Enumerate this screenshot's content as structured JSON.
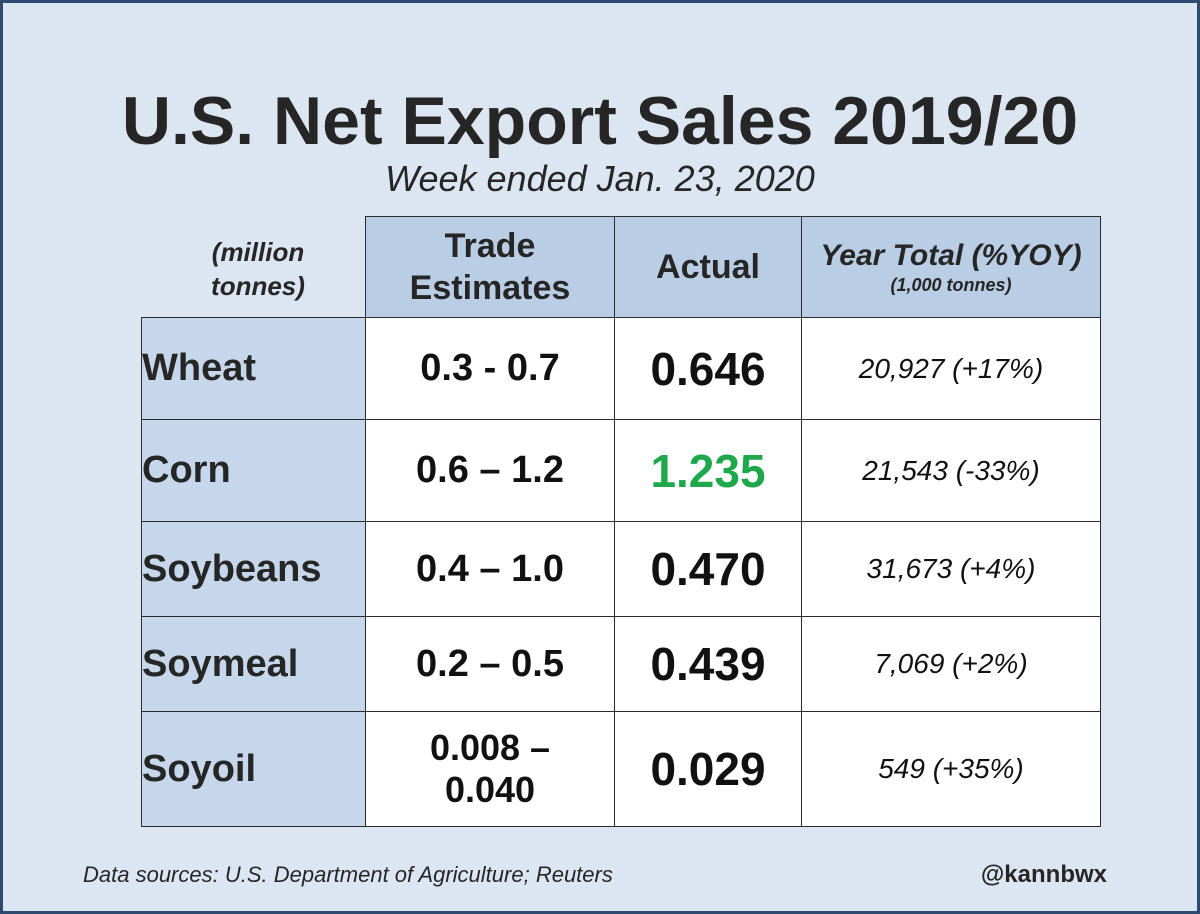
{
  "title": "U.S. Net Export Sales 2019/20",
  "subtitle": "Week ended Jan. 23, 2020",
  "units_label": "(million tonnes)",
  "highlight_color": "#1ea84b",
  "chart_data": {
    "type": "table",
    "columns": [
      {
        "label": "Trade Estimates",
        "note": ""
      },
      {
        "label": "Actual",
        "note": ""
      },
      {
        "label": "Year Total (%YOY)",
        "note": "(1,000 tonnes)"
      }
    ],
    "rows": [
      {
        "crop": "Wheat",
        "estimate": "0.3 - 0.7",
        "actual": "0.646",
        "year_total": "20,927 (+17%)",
        "highlight": false
      },
      {
        "crop": "Corn",
        "estimate": "0.6 – 1.2",
        "actual": "1.235",
        "year_total": "21,543 (-33%)",
        "highlight": true
      },
      {
        "crop": "Soybeans",
        "estimate": "0.4 – 1.0",
        "actual": "0.470",
        "year_total": "31,673 (+4%)",
        "highlight": false
      },
      {
        "crop": "Soymeal",
        "estimate": "0.2 – 0.5",
        "actual": "0.439",
        "year_total": "7,069 (+2%)",
        "highlight": false
      },
      {
        "crop": "Soyoil",
        "estimate": "0.008 – 0.040",
        "actual": "0.029",
        "year_total": "549 (+35%)",
        "highlight": false
      }
    ]
  },
  "footer": {
    "source": "Data sources: U.S. Department of Agriculture; Reuters",
    "handle": "@kannbwx"
  }
}
